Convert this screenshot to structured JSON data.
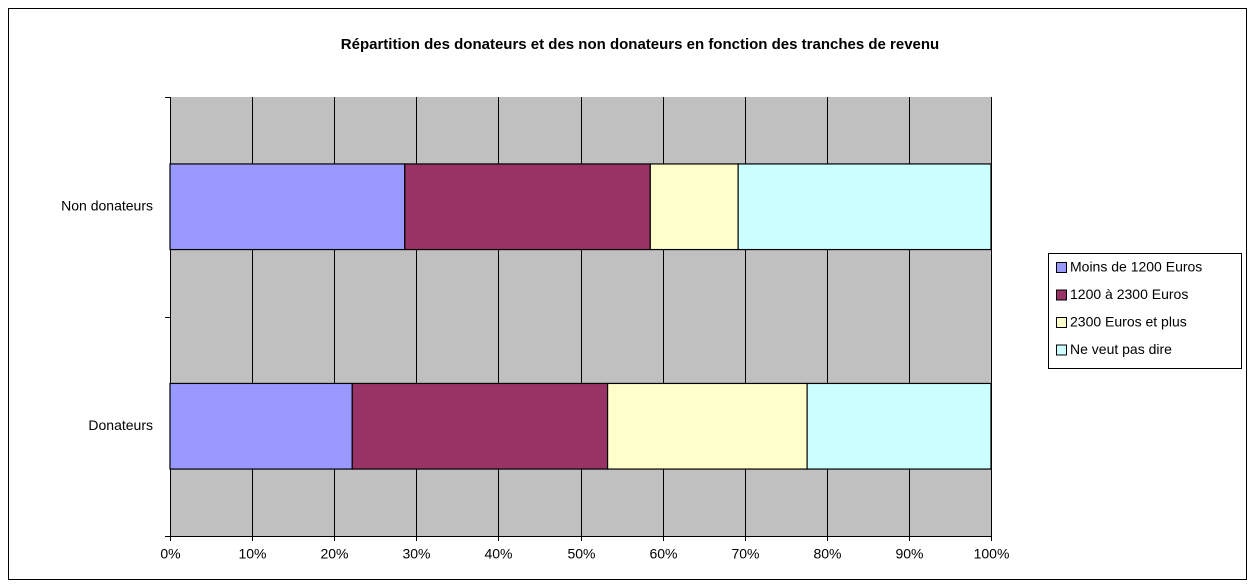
{
  "chart_data": {
    "type": "stacked_barh",
    "title": "Répartition des donateurs et des non donateurs en fonction des tranches de revenu",
    "categories": [
      "Donateurs",
      "Non donateurs"
    ],
    "series": [
      {
        "name": "Moins de 1200 Euros",
        "color": "#9999ff",
        "values": [
          22.2,
          28.6
        ]
      },
      {
        "name": "1200 à 2300 Euros",
        "color": "#993366",
        "values": [
          31.1,
          29.9
        ]
      },
      {
        "name": "2300 Euros et plus",
        "color": "#ffffcc",
        "values": [
          24.3,
          10.7
        ]
      },
      {
        "name": "Ne veut pas dire",
        "color": "#ccffff",
        "values": [
          22.4,
          30.8
        ]
      }
    ],
    "xlim": [
      0,
      100
    ],
    "xticks": [
      {
        "value": 0,
        "label": "0%"
      },
      {
        "value": 10,
        "label": "10%"
      },
      {
        "value": 20,
        "label": "20%"
      },
      {
        "value": 30,
        "label": "30%"
      },
      {
        "value": 40,
        "label": "40%"
      },
      {
        "value": 50,
        "label": "50%"
      },
      {
        "value": 60,
        "label": "60%"
      },
      {
        "value": 70,
        "label": "70%"
      },
      {
        "value": 80,
        "label": "80%"
      },
      {
        "value": 90,
        "label": "90%"
      },
      {
        "value": 100,
        "label": "100%"
      }
    ],
    "grid": true,
    "legend": "right"
  }
}
